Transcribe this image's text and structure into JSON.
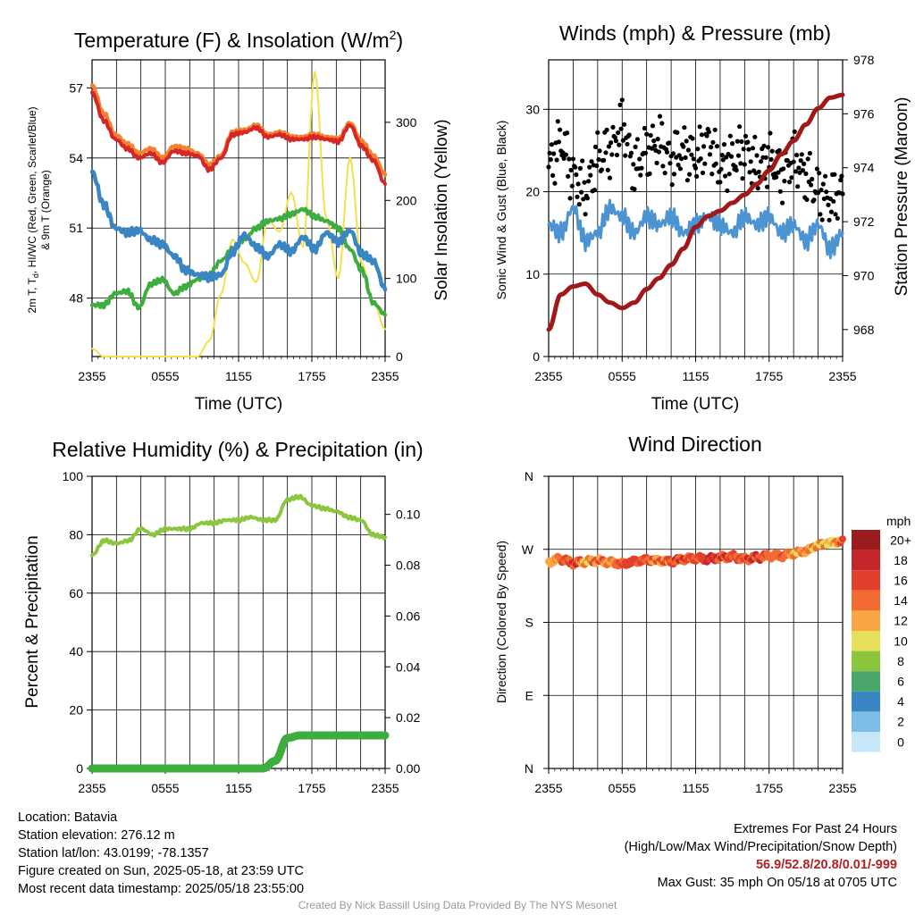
{
  "panels": {
    "temp": {
      "title_main": "Temperature (F) & Insolation (W/m",
      "title_sup": "2",
      "title_end": ")",
      "ylabel_line1": "2m T, T",
      "ylabel_sub": "d",
      "ylabel_line1_end": ", HI/WC (Red, Green, Scarlet/Blue)",
      "ylabel_line2": "& 9m T (Orange)",
      "y2label": "Solar Insolation (Yellow)",
      "xlabel": "Time (UTC)"
    },
    "wind": {
      "title": "Winds (mph) & Pressure (mb)",
      "ylabel": "Sonic Wind & Gust (Blue, Black)",
      "y2label": "Station Pressure (Maroon)",
      "xlabel": "Time (UTC)"
    },
    "rh": {
      "title": "Relative Humidity (%) & Precipitation (in)",
      "ylabel": "Percent & Precipitation"
    },
    "dir": {
      "title": "Wind Direction",
      "ylabel": "Direction (Colored By Speed)",
      "legend_title": "mph"
    }
  },
  "chart_data": [
    {
      "type": "line",
      "title": "Temperature (F) & Insolation (W/m2)",
      "xlabel": "Time (UTC)",
      "ylabel": "2m T, Td, HI/WC (Red, Green, Scarlet/Blue) & 9m T (Orange)",
      "y2label": "Solar Insolation (Yellow)",
      "x_ticks": [
        "2355",
        "0555",
        "1155",
        "1755",
        "2355"
      ],
      "ylim": [
        45.5,
        58.2
      ],
      "y_ticks": [
        48,
        51,
        54,
        57
      ],
      "y2lim": [
        0,
        380
      ],
      "y2_ticks": [
        0,
        100,
        200,
        300
      ],
      "x": [
        0,
        1,
        1.5,
        2,
        3,
        4,
        5,
        6,
        7,
        8,
        9,
        10,
        11,
        12,
        13,
        14,
        15,
        16,
        17,
        18,
        19,
        20,
        21,
        22,
        23,
        24
      ],
      "series": [
        {
          "name": "2m T",
          "color": "#d62728",
          "axis": "left",
          "values": [
            56.8,
            55.6,
            54.8,
            54.4,
            54.0,
            54.2,
            53.8,
            54.3,
            54.2,
            54.1,
            53.5,
            54.0,
            55.0,
            55.1,
            55.3,
            54.9,
            55.0,
            54.8,
            54.8,
            54.9,
            54.8,
            54.7,
            55.4,
            54.5,
            53.9,
            52.9
          ]
        },
        {
          "name": "9m T",
          "color": "#f58231",
          "axis": "left",
          "values": [
            57.1,
            55.9,
            55.0,
            54.6,
            54.2,
            54.4,
            54.0,
            54.5,
            54.4,
            54.2,
            53.7,
            54.1,
            55.1,
            55.2,
            55.4,
            55.0,
            55.1,
            54.9,
            54.9,
            55.0,
            54.9,
            54.8,
            55.5,
            54.7,
            54.1,
            53.3
          ]
        },
        {
          "name": "Td",
          "color": "#3dae3d",
          "axis": "left",
          "values": [
            47.7,
            47.7,
            48.2,
            48.3,
            47.6,
            48.6,
            48.8,
            48.2,
            48.5,
            48.8,
            49.0,
            49.6,
            50.1,
            50.5,
            51.0,
            51.3,
            51.4,
            51.6,
            51.8,
            51.5,
            51.3,
            51.0,
            50.1,
            49.2,
            47.8,
            47.3
          ]
        },
        {
          "name": "HI/WC",
          "color": "#3a86c4",
          "axis": "left",
          "values": [
            53.4,
            52.0,
            51.0,
            50.8,
            50.9,
            50.5,
            50.3,
            49.8,
            49.2,
            49.0,
            48.9,
            49.0,
            50.0,
            50.7,
            50.2,
            49.8,
            50.3,
            50.0,
            50.6,
            50.1,
            50.8,
            50.4,
            50.9,
            49.9,
            49.6,
            48.4
          ]
        },
        {
          "name": "Solar Insolation",
          "color": "#f3e04a",
          "axis": "right",
          "values": [
            10,
            0,
            0,
            0,
            0,
            0,
            0,
            0,
            0,
            0,
            20,
            80,
            150,
            120,
            95,
            175,
            160,
            210,
            140,
            365,
            175,
            100,
            255,
            120,
            70,
            35
          ]
        }
      ]
    },
    {
      "type": "line",
      "title": "Winds (mph) & Pressure (mb)",
      "xlabel": "Time (UTC)",
      "ylabel": "Sonic Wind & Gust (Blue, Black)",
      "y2label": "Station Pressure (Maroon)",
      "x_ticks": [
        "2355",
        "0555",
        "1155",
        "1755",
        "2355"
      ],
      "ylim": [
        0,
        36
      ],
      "y_ticks": [
        0,
        10,
        20,
        30
      ],
      "y2lim": [
        967.0,
        978.0
      ],
      "y2_ticks": [
        968,
        970,
        972,
        974,
        976,
        978
      ],
      "x": [
        0,
        1,
        2,
        3,
        4,
        5,
        6,
        7,
        8,
        9,
        10,
        11,
        12,
        13,
        14,
        15,
        16,
        17,
        18,
        19,
        20,
        21,
        22,
        23,
        24
      ],
      "series": [
        {
          "name": "Sonic Wind",
          "color": "#4b93d1",
          "axis": "left",
          "values": [
            16,
            15,
            18,
            14,
            15,
            18,
            17,
            15,
            17,
            16,
            17,
            15,
            16,
            17,
            16,
            15,
            17,
            16,
            17,
            15,
            16,
            14,
            16,
            13,
            15
          ]
        },
        {
          "name": "Gust",
          "color": "#000000",
          "axis": "left",
          "style": "points",
          "values": [
            23,
            26,
            22,
            20,
            24,
            25,
            28,
            23,
            25,
            26,
            24,
            25,
            24,
            26,
            23,
            24,
            25,
            23,
            24,
            22,
            24,
            22,
            20,
            19,
            20
          ]
        },
        {
          "name": "Station Pressure",
          "color": "#a01818",
          "axis": "right",
          "values": [
            968.0,
            969.3,
            969.6,
            969.7,
            969.3,
            969.0,
            968.8,
            969.0,
            969.5,
            969.9,
            970.4,
            971.0,
            971.8,
            972.2,
            972.4,
            972.7,
            973.0,
            973.4,
            973.9,
            974.5,
            975.0,
            975.6,
            976.2,
            976.6,
            976.7
          ]
        }
      ]
    },
    {
      "type": "line",
      "title": "Relative Humidity (%) & Precipitation (in)",
      "ylabel": "Percent & Precipitation",
      "x_ticks": [
        "2355",
        "0555",
        "1155",
        "1755",
        "2355"
      ],
      "ylim": [
        0,
        100
      ],
      "y_ticks": [
        0,
        20,
        40,
        60,
        80,
        100
      ],
      "y2lim": [
        0,
        0.115
      ],
      "y2_ticks": [
        "0.00",
        "0.02",
        "0.04",
        "0.06",
        "0.08",
        "0.10"
      ],
      "x": [
        0,
        1,
        2,
        3,
        4,
        5,
        6,
        7,
        8,
        9,
        10,
        11,
        12,
        13,
        14,
        15,
        16,
        17,
        18,
        19,
        20,
        21,
        22,
        23,
        24
      ],
      "series": [
        {
          "name": "Relative Humidity",
          "color": "#8cc63f",
          "axis": "left",
          "values": [
            73,
            78,
            77,
            78,
            82,
            80,
            82,
            82,
            82,
            84,
            84,
            85,
            85,
            86,
            85,
            85,
            92,
            93,
            90,
            89,
            88,
            86,
            85,
            80,
            79
          ]
        },
        {
          "name": "Precipitation",
          "color": "#3dae3d",
          "axis": "right",
          "values": [
            0,
            0,
            0,
            0,
            0,
            0,
            0,
            0,
            0,
            0,
            0,
            0,
            0,
            0,
            0,
            0.003,
            0.012,
            0.013,
            0.013,
            0.013,
            0.013,
            0.013,
            0.013,
            0.013,
            0.013
          ]
        }
      ]
    },
    {
      "type": "scatter",
      "title": "Wind Direction",
      "ylabel": "Direction (Colored By Speed)",
      "x_ticks": [
        "2355",
        "0555",
        "1155",
        "1755",
        "2355"
      ],
      "y_ticks": [
        "N",
        "E",
        "S",
        "W",
        "N"
      ],
      "ylim": [
        0,
        360
      ],
      "x": [
        0,
        1,
        2,
        3,
        4,
        5,
        6,
        7,
        8,
        9,
        10,
        11,
        12,
        13,
        14,
        15,
        16,
        17,
        18,
        19,
        20,
        21,
        22,
        23,
        24
      ],
      "series": [
        {
          "name": "Direction",
          "values": [
            255,
            258,
            253,
            255,
            256,
            254,
            252,
            255,
            257,
            256,
            255,
            258,
            259,
            258,
            260,
            261,
            258,
            260,
            262,
            262,
            265,
            268,
            275,
            278,
            280
          ]
        }
      ],
      "speed_colors": [
        12,
        15,
        17,
        13,
        15,
        14,
        16,
        17,
        16,
        15,
        16,
        17,
        16,
        18,
        17,
        16,
        16,
        17,
        15,
        16,
        13,
        14,
        13,
        12,
        15
      ],
      "colorbar": {
        "labels": [
          "20+",
          "18",
          "16",
          "14",
          "12",
          "10",
          "8",
          "6",
          "4",
          "2",
          "0"
        ],
        "colors": [
          "#9b1c1f",
          "#c4262c",
          "#e13f2d",
          "#f26b32",
          "#f9a646",
          "#e6e05a",
          "#8cc63f",
          "#4aa66a",
          "#3a86c4",
          "#7dbde8",
          "#c7e7f8"
        ]
      }
    }
  ],
  "info": {
    "location": "Location: Batavia",
    "elevation": "Station elevation: 276.12 m",
    "latlon": "Station lat/lon: 43.0199; -78.1357",
    "created": "Figure created on Sun, 2025-05-18, at 23:59 UTC",
    "recent": "Most recent data timestamp: 2025/05/18 23:55:00",
    "extremes_title": "Extremes For Past 24 Hours",
    "extremes_sub": "(High/Low/Max Wind/Precipitation/Snow Depth)",
    "extremes_values": "56.9/52.8/20.8/0.01/-999",
    "max_gust": "Max Gust: 35 mph On 05/18 at 0705 UTC"
  },
  "credit": "Created By Nick Bassill Using Data Provided By The NYS Mesonet"
}
